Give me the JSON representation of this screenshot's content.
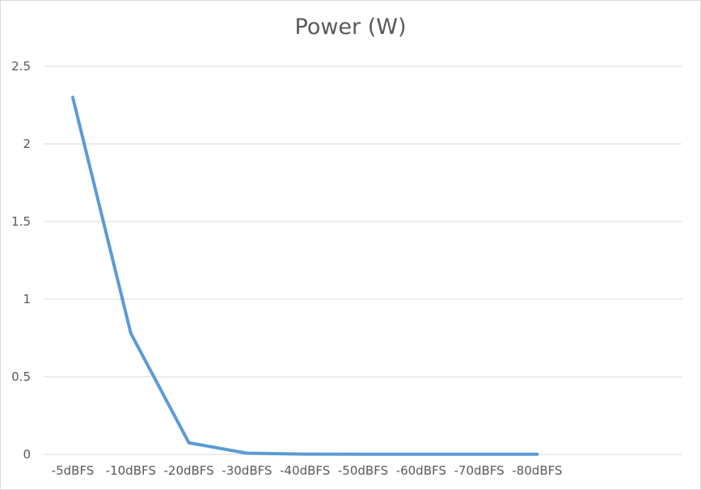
{
  "chart_data": {
    "type": "line",
    "title": "Power (W)",
    "xlabel": "",
    "ylabel": "",
    "categories": [
      "-5dBFS",
      "-10dBFS",
      "-20dBFS",
      "-30dBFS",
      "-40dBFS",
      "-50dBFS",
      "-60dBFS",
      "-70dBFS",
      "-80dBFS"
    ],
    "series": [
      {
        "values": [
          2.3,
          0.78,
          0.075,
          0.008,
          0.002,
          0.001,
          0.001,
          0.001,
          0.001
        ],
        "color": "#5b9bd5"
      }
    ],
    "ylim": [
      0,
      2.5
    ],
    "yticks": [
      0,
      0.5,
      1,
      1.5,
      2,
      2.5
    ],
    "ytick_labels": [
      "0",
      "0.5",
      "1",
      "1.5",
      "2",
      "2.5"
    ],
    "grid": true,
    "gridline_color": "#d9d9d9",
    "text_color": "#595959",
    "legend": "none"
  }
}
